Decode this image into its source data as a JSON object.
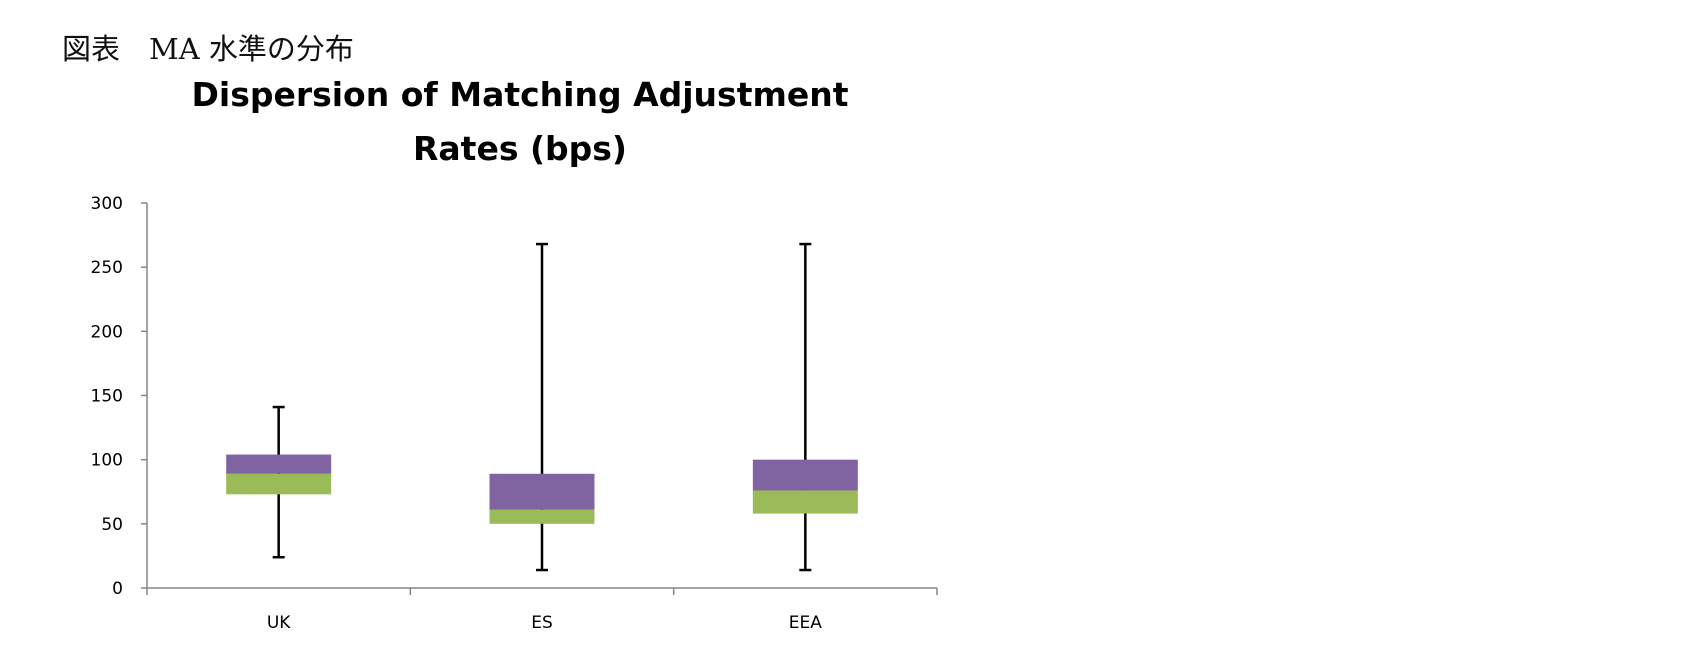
{
  "caption": "図表　MA 水準の分布",
  "chart_data": {
    "type": "box",
    "title": "Dispersion of Matching Adjustment Rates (bps)",
    "xlabel": "",
    "ylabel": "",
    "ylim": [
      0,
      300
    ],
    "yticks": [
      "0",
      "50",
      "100",
      "150",
      "200",
      "250",
      "300"
    ],
    "categories": [
      "UK",
      "ES",
      "EEA"
    ],
    "boxes": [
      {
        "category": "UK",
        "min": 24,
        "q1": 73,
        "median": 89,
        "q3": 104,
        "max": 141
      },
      {
        "category": "ES",
        "min": 14,
        "q1": 50,
        "median": 61,
        "q3": 89,
        "max": 268
      },
      {
        "category": "EEA",
        "min": 14,
        "q1": 58,
        "median": 76,
        "q3": 100,
        "max": 268
      }
    ],
    "grid": false,
    "legend": "none",
    "colors": {
      "lower_box": "#9bbb59",
      "upper_box": "#8064a2",
      "whisker": "#000000",
      "axis": "#868686"
    }
  }
}
